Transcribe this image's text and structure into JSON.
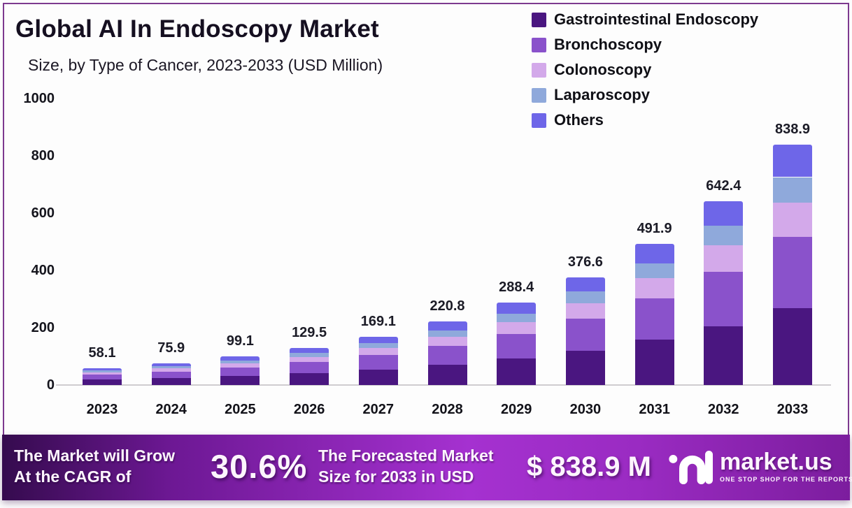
{
  "header": {
    "title": "Global AI In Endoscopy Market",
    "subtitle": "Size, by Type of Cancer, 2023-2033 (USD Million)"
  },
  "chart_data": {
    "type": "bar",
    "stacked": true,
    "title": "Global AI In Endoscopy Market Size, by Type of Cancer, 2023-2033 (USD Million)",
    "xlabel": "",
    "ylabel": "",
    "ylim": [
      0,
      1000
    ],
    "yticks": [
      0,
      200,
      400,
      600,
      800,
      1000
    ],
    "grid": false,
    "legend_position": "top-right",
    "categories": [
      "2023",
      "2024",
      "2025",
      "2026",
      "2027",
      "2028",
      "2029",
      "2030",
      "2031",
      "2032",
      "2033"
    ],
    "totals": [
      "58.1",
      "75.9",
      "99.1",
      "129.5",
      "169.1",
      "220.8",
      "288.4",
      "376.6",
      "491.9",
      "642.4",
      "838.9"
    ],
    "series": [
      {
        "name": "Gastrointestinal Endoscopy",
        "key": "gastrointestinal-endoscopy",
        "color": "#4A1680",
        "values": [
          18.6,
          24.3,
          31.7,
          41.4,
          54.1,
          70.7,
          92.3,
          120.5,
          157.4,
          205.6,
          268.4
        ]
      },
      {
        "name": "Bronchoscopy",
        "key": "bronchoscopy",
        "color": "#8A52CB",
        "values": [
          17.1,
          22.4,
          29.2,
          38.2,
          49.9,
          65.1,
          85.1,
          111.1,
          145.1,
          189.5,
          247.5
        ]
      },
      {
        "name": "Colonoscopy",
        "key": "colonoscopy",
        "color": "#D3A9EA",
        "values": [
          8.4,
          11.0,
          14.4,
          18.8,
          24.5,
          32.0,
          41.8,
          54.6,
          71.3,
          93.1,
          121.6
        ]
      },
      {
        "name": "Laparoscopy",
        "key": "laparoscopy",
        "color": "#8FA9DB",
        "values": [
          6.1,
          8.0,
          10.4,
          13.6,
          17.8,
          23.2,
          30.3,
          39.5,
          51.7,
          67.5,
          88.1
        ]
      },
      {
        "name": "Others",
        "key": "others",
        "color": "#6E66E8",
        "values": [
          7.9,
          10.2,
          13.4,
          17.5,
          22.8,
          29.8,
          38.9,
          50.9,
          66.4,
          86.7,
          113.3
        ]
      }
    ]
  },
  "banner": {
    "cagr_label_line1": "The Market will Grow",
    "cagr_label_line2": "At the CAGR of",
    "cagr_value": "30.6%",
    "forecast_label_line1": "The Forecasted Market",
    "forecast_label_line2": "Size for 2033 in USD",
    "forecast_value": "$ 838.9 M",
    "brand_name": "market.us",
    "brand_tagline": "ONE STOP SHOP FOR THE REPORTS"
  },
  "colors": {
    "frame_border": "#7d3a8f",
    "baseline": "#cfccd0",
    "banner": {
      "left": "#350b4e",
      "mid_left": "#6d1894",
      "mid": "#a531d0",
      "mid_right": "#9a2bc2",
      "right": "#7c1d9e"
    }
  }
}
